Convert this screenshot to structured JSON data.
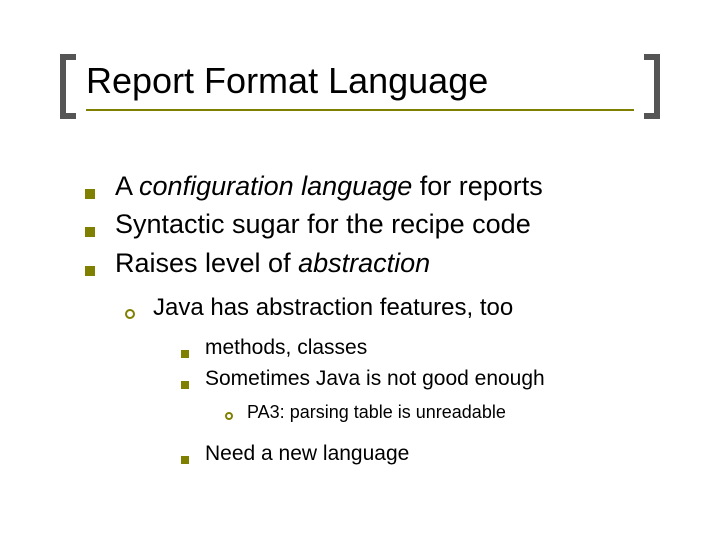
{
  "title": "Report Format Language",
  "colors": {
    "accent": "#808000",
    "bracket": "#555555",
    "text": "#000000",
    "background": "#ffffff"
  },
  "typography": {
    "title_fontsize": 36,
    "lvl1_fontsize": 27,
    "lvl2_fontsize": 24,
    "lvl3_fontsize": 21,
    "lvl4_fontsize": 18,
    "font_family": "Arial"
  },
  "bullets": {
    "lvl1_pre": "A ",
    "lvl1_italic1": "configuration language",
    "lvl1_post": " for reports",
    "lvl1_b": "Syntactic sugar for the recipe code",
    "lvl1_c_pre": "Raises level of ",
    "lvl1_c_italic": "abstraction",
    "lvl2_a": "Java has abstraction features, too",
    "lvl3_a": "methods, classes",
    "lvl3_b": "Sometimes Java is not good enough",
    "lvl4_a": "PA3: parsing table is unreadable",
    "lvl3_c": "Need a new language"
  }
}
